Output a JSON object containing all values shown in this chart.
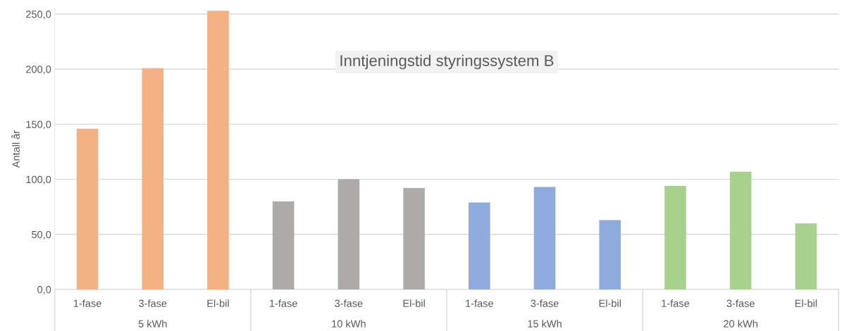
{
  "chart_data": {
    "type": "bar",
    "title": "Inntjeningstid styringssystem B",
    "ylabel": "Antall år",
    "categories": [
      "1-fase",
      "3-fase",
      "El-bil",
      "1-fase",
      "3-fase",
      "El-bil",
      "1-fase",
      "3-fase",
      "El-bil",
      "1-fase",
      "3-fase",
      "El-bil"
    ],
    "values": [
      146,
      201,
      253,
      80,
      100,
      92,
      79,
      93,
      63,
      94,
      107,
      60
    ],
    "colors": [
      "#f4b183",
      "#f4b183",
      "#f4b183",
      "#aeaaaa",
      "#aeaaaa",
      "#aeaaaa",
      "#8faadc",
      "#8faadc",
      "#8faadc",
      "#a9d18e",
      "#a9d18e",
      "#a9d18e"
    ],
    "annotations": [
      "5 kWh",
      "10 kWh",
      "15 kWh",
      "20 kWh"
    ],
    "ylim": [
      0,
      255
    ],
    "yticks": [
      {
        "value": 0,
        "label": "0,0"
      },
      {
        "value": 50,
        "label": "50,0"
      },
      {
        "value": 100,
        "label": "100,0"
      },
      {
        "value": 150,
        "label": "150,0"
      },
      {
        "value": 200,
        "label": "200,0"
      },
      {
        "value": 250,
        "label": "250,0"
      }
    ],
    "grid": "y",
    "legend": false
  }
}
